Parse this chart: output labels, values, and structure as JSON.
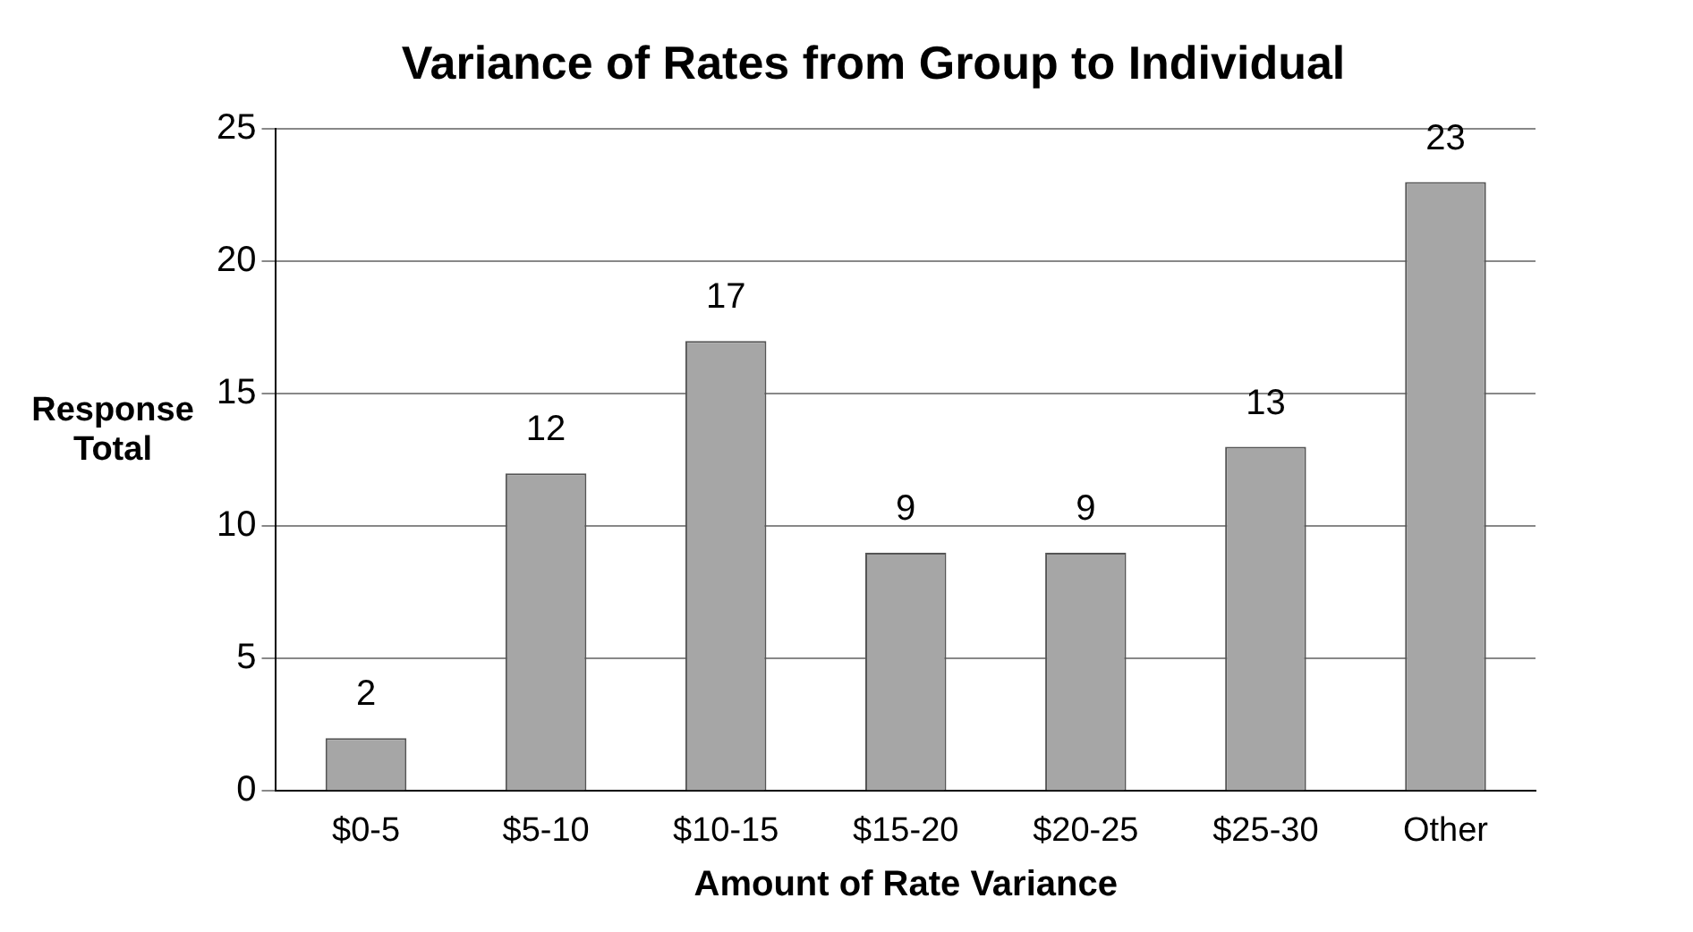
{
  "chart_data": {
    "type": "bar",
    "title": "Variance of Rates from Group to Individual",
    "xlabel": "Amount of Rate Variance",
    "ylabel": "Response Total",
    "categories": [
      "$0-5",
      "$5-10",
      "$10-15",
      "$15-20",
      "$20-25",
      "$25-30",
      "Other"
    ],
    "values": [
      2,
      12,
      17,
      9,
      9,
      13,
      23
    ],
    "color": "#a6a6a6",
    "ylim": [
      0,
      25
    ],
    "yticks": [
      0,
      5,
      10,
      15,
      20,
      25
    ],
    "grid": "y",
    "data_labels": true
  }
}
